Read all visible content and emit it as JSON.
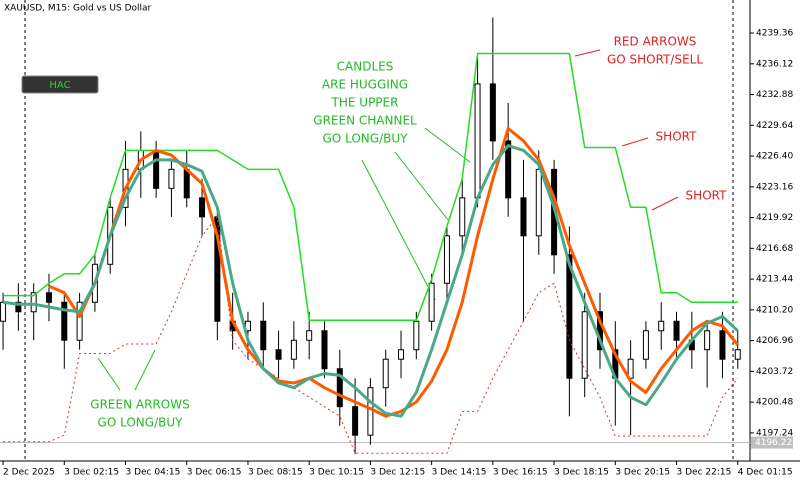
{
  "chart_data": {
    "type": "candlestick",
    "title": "XAUUSD, M15:  Gold vs US Dollar",
    "button": "HAC",
    "xlim": [
      -0.2,
      48.8
    ],
    "xticks": [
      {
        "value": 0,
        "label": "2 Dec 2025"
      },
      {
        "value": 4,
        "label": "3 Dec 02:15"
      },
      {
        "value": 8,
        "label": "3 Dec 04:15"
      },
      {
        "value": 12,
        "label": "3 Dec 06:15"
      },
      {
        "value": 16,
        "label": "3 Dec 08:15"
      },
      {
        "value": 20,
        "label": "3 Dec 10:15"
      },
      {
        "value": 24,
        "label": "3 Dec 12:15"
      },
      {
        "value": 28,
        "label": "3 Dec 14:15"
      },
      {
        "value": 32,
        "label": "3 Dec 16:15"
      },
      {
        "value": 36,
        "label": "3 Dec 18:15"
      },
      {
        "value": 40,
        "label": "3 Dec 20:15"
      },
      {
        "value": 44,
        "label": "3 Dec 22:15"
      },
      {
        "value": 48,
        "label": "4 Dec 01:15"
      }
    ],
    "ylim": [
      4194.28,
      4242.84
    ],
    "yticks": [
      4197.24,
      4200.48,
      4203.72,
      4206.96,
      {
        "value": 4210.2,
        "label": "4210.20"
      },
      4213.44,
      4216.68,
      4219.92,
      4223.16,
      {
        "value": 4226.4,
        "label": "4226.40"
      },
      4229.64,
      4232.88,
      4236.12,
      4239.36
    ],
    "last_price": 4196.22,
    "open": [
      4209,
      4211,
      4210,
      4212,
      4211,
      4207,
      4211,
      4215,
      4221,
      4225,
      4227,
      4223,
      4225,
      4222,
      4220,
      4209,
      4208,
      4209,
      4206,
      4205,
      4207,
      4208,
      4204,
      4200,
      4197,
      4202,
      4205,
      4206,
      4209,
      4213,
      4218,
      4222,
      4234,
      4228,
      4222,
      4218,
      4225,
      4216,
      4203,
      4210,
      4206,
      4203,
      4205,
      4208,
      4209,
      4207,
      4206,
      4208,
      4205
    ],
    "high": [
      4212,
      4213,
      4213,
      4214,
      4212,
      4212,
      4216,
      4222,
      4228,
      4229,
      4228,
      4226,
      4227,
      4224,
      4221,
      4212,
      4210,
      4211,
      4208,
      4209,
      4210,
      4209,
      4206,
      4203,
      4203,
      4206,
      4208,
      4210,
      4214,
      4219,
      4224,
      4237,
      4241,
      4232,
      4226,
      4227,
      4226,
      4219,
      4212,
      4212,
      4209,
      4207,
      4209,
      4211,
      4210,
      4210,
      4209,
      4210,
      4208
    ],
    "low": [
      4206,
      4208,
      4207,
      4209,
      4204,
      4206,
      4210,
      4214,
      4219,
      4222,
      4222,
      4220,
      4221,
      4218,
      4207,
      4206,
      4205,
      4204,
      4203,
      4204,
      4205,
      4203,
      4198,
      4195,
      4196,
      4200,
      4203,
      4205,
      4208,
      4211,
      4216,
      4221,
      4226,
      4220,
      4209,
      4216,
      4214,
      4199,
      4201,
      4204,
      4198,
      4197,
      4204,
      4206,
      4205,
      4204,
      4202,
      4203,
      4204
    ],
    "close": [
      4211,
      4210,
      4212,
      4211,
      4207,
      4211,
      4215,
      4221,
      4225,
      4227,
      4223,
      4225,
      4222,
      4220,
      4209,
      4208,
      4209,
      4206,
      4205,
      4207,
      4208,
      4204,
      4200,
      4197,
      4202,
      4205,
      4206,
      4209,
      4213,
      4218,
      4222,
      4234,
      4228,
      4222,
      4218,
      4225,
      4216,
      4203,
      4210,
      4206,
      4203,
      4205,
      4208,
      4209,
      4207,
      4206,
      4208,
      4205,
      4206
    ],
    "series": [
      {
        "color": "#22dd22",
        "style": "solid",
        "width": 1.5,
        "values": [
          4211.7,
          4211.7,
          4211.7,
          4213,
          4214,
          4214,
          4216,
          4222,
          4227,
          4227,
          4227,
          4227,
          4227,
          4227,
          4227,
          4226,
          4225,
          4225,
          4225,
          4221,
          4209.1,
          4209.1,
          4209.1,
          4209.1,
          4209.1,
          4209.1,
          4209.1,
          4209.1,
          4213.4,
          4219,
          4224,
          4237.2,
          4237.2,
          4237.2,
          4237.2,
          4237.2,
          4237.2,
          4237.2,
          4227.3,
          4227.3,
          4227.3,
          4221,
          4221,
          4212,
          4212,
          4211,
          4211,
          4211,
          4211
        ]
      },
      {
        "color": "#e03030",
        "style": "dotted",
        "width": 1,
        "values": [
          4196.3,
          4196.3,
          4196.3,
          4196.3,
          4197,
          4205.6,
          4205.6,
          4205.6,
          4206.6,
          4206.6,
          4206.6,
          4210,
          4214,
          4218,
          4220,
          4207,
          4205,
          4204,
          4203,
          4202,
          4201,
          4200,
          4199,
          4195.1,
          4195.1,
          4195.1,
          4195.1,
          4195.1,
          4195.1,
          4195.1,
          4199.5,
          4199.5,
          4203,
          4206,
          4209,
          4212,
          4213,
          4207,
          4204,
          4201,
          4196.9,
          4196.9,
          4196.9,
          4196.9,
          4196.9,
          4196.9,
          4196.9,
          4201,
          4203
        ]
      },
      {
        "color": "#ff5a00",
        "style": "solid",
        "width": 3,
        "values": [
          null,
          null,
          null,
          4212.7,
          4212,
          4209.5,
          4213,
          4218,
          4223,
          4226,
          4227,
          4226.5,
          4225,
          4223.5,
          4218,
          4209,
          4206,
          4204,
          4202.7,
          4202.5,
          4203,
          4202,
          4201.2,
          4200.5,
          4199.8,
          4199,
          4199.5,
          4200.5,
          4202.7,
          4206,
          4211,
          4218,
          4224,
          4229.3,
          4228,
          4226,
          4222,
          4217,
          4213,
          4209,
          4205.5,
          4202.7,
          4201.5,
          4204,
          4206,
          4208,
          4209,
          4208.5,
          4206.5
        ]
      },
      {
        "color": "#4aa88a",
        "style": "solid",
        "width": 3,
        "values": [
          4211,
          4210.8,
          4210.8,
          4210.5,
          4210.2,
          4210,
          4213,
          4218,
          4222,
          4225,
          4226,
          4226,
          4225.5,
          4224.8,
          4221,
          4213,
          4207,
          4204,
          4202.5,
          4202,
          4203,
          4203.5,
          4203.3,
          4202,
          4200.5,
          4199.3,
          4199,
          4201.5,
          4206,
          4211,
          4216,
          4222,
          4225.5,
          4227.5,
          4227,
          4225.5,
          4221,
          4215,
          4211,
          4207,
          4203,
          4201,
          4200.2,
          4202.5,
          4205,
          4207,
          4208.8,
          4209.5,
          4208
        ]
      }
    ],
    "annotations": [
      {
        "color": "#22bb22",
        "lines": [
          "CANDLES",
          "ARE HUGGING",
          "THE UPPER",
          "GREEN CHANNEL",
          "GO LONG/BUY"
        ]
      },
      {
        "color": "#dd2222",
        "lines": [
          "RED ARROWS",
          "GO SHORT/SELL"
        ]
      },
      {
        "color": "#dd2222",
        "lines": [
          "SHORT"
        ]
      },
      {
        "color": "#dd2222",
        "lines": [
          "SHORT"
        ]
      },
      {
        "color": "#22bb22",
        "lines": [
          "GREEN ARROWS",
          "GO LONG/BUY"
        ]
      }
    ]
  }
}
